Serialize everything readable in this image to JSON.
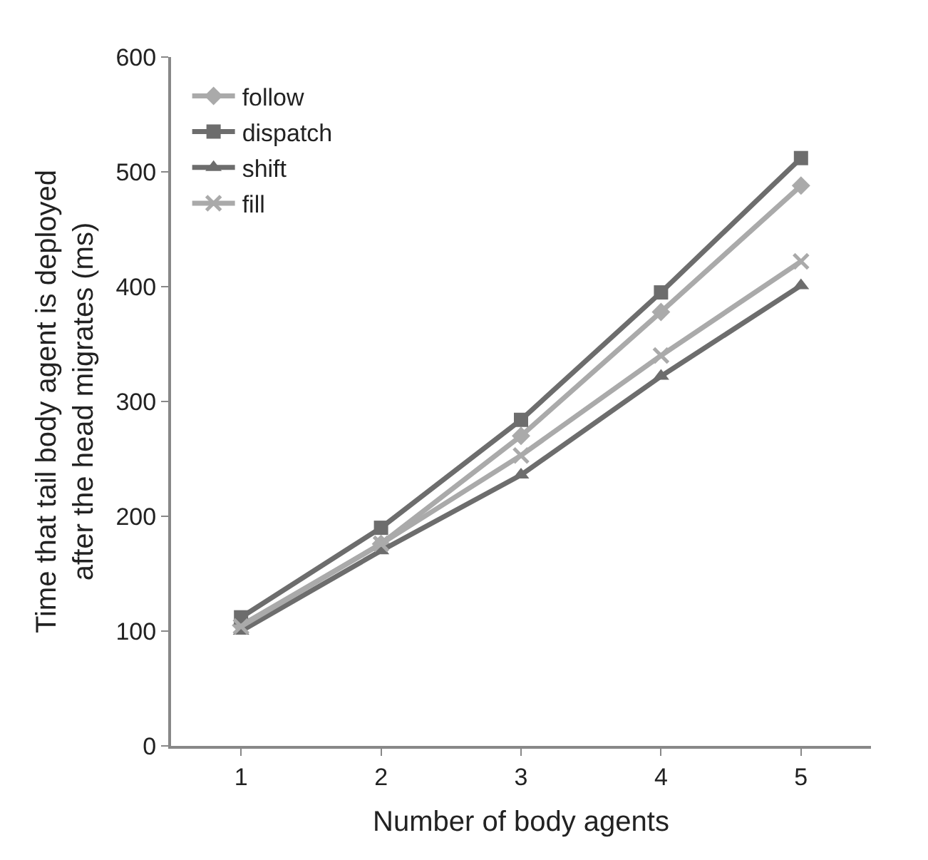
{
  "chart_data": {
    "type": "line",
    "xlabel": "Number of body agents",
    "ylabel": "Time that tail body agent is deployed\nafter the head migrates (ms)",
    "categories": [
      "1",
      "2",
      "3",
      "4",
      "5"
    ],
    "series": [
      {
        "name": "follow",
        "color": "#aaaaaa",
        "marker": "diamond",
        "values": [
          105,
          176,
          270,
          378,
          488
        ]
      },
      {
        "name": "dispatch",
        "color": "#6d6d6d",
        "marker": "square",
        "values": [
          112,
          190,
          284,
          395,
          512
        ]
      },
      {
        "name": "shift",
        "color": "#6d6d6d",
        "marker": "triangle",
        "values": [
          100,
          170,
          236,
          322,
          401
        ]
      },
      {
        "name": "fill",
        "color": "#aaaaaa",
        "marker": "cross",
        "values": [
          104,
          176,
          253,
          340,
          422
        ]
      }
    ],
    "ylim": [
      0,
      600
    ],
    "yticks": [
      0,
      100,
      200,
      300,
      400,
      500,
      600
    ],
    "legend": "top left"
  }
}
